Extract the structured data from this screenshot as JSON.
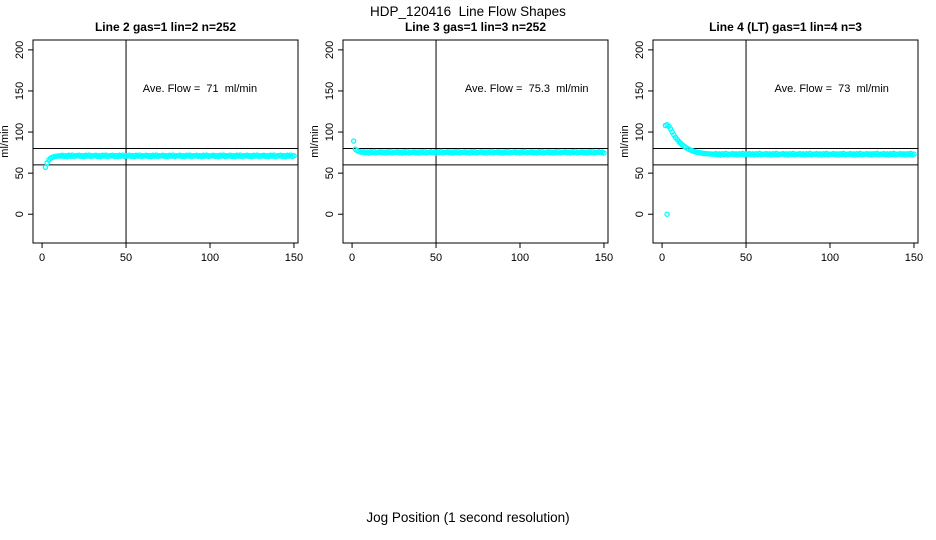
{
  "page": {
    "title": "HDP_120416  Line Flow Shapes",
    "xlabel": "Jog Position (1 second resolution)"
  },
  "colors": {
    "points": "#00ffff",
    "axis": "#000000",
    "text": "#000000",
    "background": "#ffffff"
  },
  "chart_data": [
    {
      "type": "scatter",
      "title": "Line 2 gas=1 lin=2 n=252",
      "annotation": "Ave. Flow =  71  ml/min",
      "ave_flow_ml_min": 71,
      "n": 252,
      "ylabel": "ml/min",
      "xlim": [
        -5.4,
        152.4
      ],
      "ylim": [
        -35,
        212
      ],
      "x_ticks": [
        0,
        50,
        100,
        150
      ],
      "y_ticks": [
        0,
        50,
        100,
        150,
        200
      ],
      "vline_x": 50,
      "hlines": [
        60,
        80
      ],
      "grid": false,
      "annotation_at": [
        94,
        149
      ],
      "series": {
        "x_start": 2,
        "x_step": 1,
        "values": [
          57,
          62.5,
          66,
          68,
          69.2,
          70,
          70.4,
          70.7,
          70.9,
          71,
          71.8,
          70.4,
          71.4,
          70.1,
          71.7,
          70.7,
          72,
          70.3,
          71.2,
          71,
          71.8,
          70.4,
          71.4,
          70.1,
          71.7,
          70.7,
          72,
          70.3,
          71.2,
          71,
          71.8,
          70.4,
          71.4,
          70.1,
          71.7,
          70.7,
          72,
          70.3,
          71.2,
          71,
          71.8,
          70.4,
          71.4,
          70.1,
          71.7,
          70.7,
          72,
          70.3,
          71.2,
          71,
          71.8,
          70.4,
          71.4,
          70.1,
          71.7,
          70.7,
          72,
          70.3,
          71.2,
          71,
          71.8,
          70.4,
          71.4,
          70.1,
          71.7,
          70.7,
          72,
          70.3,
          71.2,
          71,
          71.8,
          70.4,
          71.4,
          70.1,
          71.7,
          70.7,
          72,
          70.3,
          71.2,
          71,
          71.8,
          70.4,
          71.4,
          70.1,
          71.7,
          70.7,
          72,
          70.3,
          71.2,
          71,
          71.8,
          70.4,
          71.4,
          70.1,
          71.7,
          70.7,
          72,
          70.3,
          71.2,
          71,
          71.8,
          70.4,
          71.4,
          70.1,
          71.7,
          70.7,
          72,
          70.3,
          71.2,
          71,
          71.8,
          70.4,
          71.4,
          70.1,
          71.7,
          70.7,
          72,
          70.3,
          71.2,
          71,
          71.8,
          70.4,
          71.4,
          70.1,
          71.7,
          70.7,
          72,
          70.3,
          71.2,
          71,
          71.8,
          70.4,
          71.4,
          70.1,
          71.7,
          70.7,
          72,
          70.3,
          71.2,
          71,
          71.8,
          70.4,
          71.4,
          70.1,
          71.7,
          70.7,
          72,
          70.3,
          71.2
        ]
      },
      "outliers": []
    },
    {
      "type": "scatter",
      "title": "Line 3 gas=1 lin=3 n=252",
      "annotation": "Ave. Flow =  75.3  ml/min",
      "ave_flow_ml_min": 75.3,
      "n": 252,
      "ylabel": "ml/min",
      "xlim": [
        -5.4,
        152.4
      ],
      "ylim": [
        -35,
        212
      ],
      "x_ticks": [
        0,
        50,
        100,
        150
      ],
      "y_ticks": [
        0,
        50,
        100,
        150,
        200
      ],
      "vline_x": 50,
      "hlines": [
        60,
        80
      ],
      "grid": false,
      "annotation_at": [
        104,
        149
      ],
      "series": {
        "x_start": 2,
        "x_step": 1,
        "values": [
          79,
          77.5,
          76.5,
          75.8,
          75.3,
          76.1,
          74.7,
          75.7,
          74.4,
          76,
          75,
          76.3,
          74.6,
          75.5,
          75.3,
          76.1,
          74.7,
          75.7,
          74.4,
          76,
          75,
          76.3,
          74.6,
          75.5,
          75.3,
          76.1,
          74.7,
          75.7,
          74.4,
          76,
          75,
          76.3,
          74.6,
          75.5,
          75.3,
          76.1,
          74.7,
          75.7,
          74.4,
          76,
          75,
          76.3,
          74.6,
          75.5,
          75.3,
          76.1,
          74.7,
          75.7,
          74.4,
          76,
          75,
          76.3,
          74.6,
          75.5,
          75.3,
          76.1,
          74.7,
          75.7,
          74.4,
          76,
          75,
          76.3,
          74.6,
          75.5,
          75.3,
          76.1,
          74.7,
          75.7,
          74.4,
          76,
          75,
          76.3,
          74.6,
          75.5,
          75.3,
          76.1,
          74.7,
          75.7,
          74.4,
          76,
          75,
          76.3,
          74.6,
          75.5,
          75.3,
          76.1,
          74.7,
          75.7,
          74.4,
          76,
          75,
          76.3,
          74.6,
          75.5,
          75.3,
          76.1,
          74.7,
          75.7,
          74.4,
          76,
          75,
          76.3,
          74.6,
          75.5,
          75.3,
          76.1,
          74.7,
          75.7,
          74.4,
          76,
          75,
          76.3,
          74.6,
          75.5,
          75.3,
          76.1,
          74.7,
          75.7,
          74.4,
          76,
          75,
          76.3,
          74.6,
          75.5,
          75.3,
          76.1,
          74.7,
          75.7,
          74.4,
          76,
          75,
          76.3,
          74.6,
          75.5,
          75.3,
          76.1,
          74.7,
          75.7,
          74.4,
          76,
          75,
          76.3,
          74.6,
          75.5,
          75.3,
          76.1,
          74.7,
          75.7,
          74.4
        ]
      },
      "outliers": [
        [
          1,
          89
        ]
      ]
    },
    {
      "type": "scatter",
      "title": "Line 4 (LT) gas=1 lin=4 n=3",
      "annotation": "Ave. Flow =  73  ml/min",
      "ave_flow_ml_min": 73,
      "n": 3,
      "ylabel": "ml/min",
      "xlim": [
        -5.4,
        152.4
      ],
      "ylim": [
        -35,
        212
      ],
      "x_ticks": [
        0,
        50,
        100,
        150
      ],
      "y_ticks": [
        0,
        50,
        100,
        150,
        200
      ],
      "vline_x": 50,
      "hlines": [
        60,
        80
      ],
      "grid": false,
      "annotation_at": [
        101,
        149
      ],
      "series": {
        "x_start": 2,
        "x_step": 1,
        "values": [
          108,
          109,
          107,
          104,
          100,
          96.5,
          93.5,
          91,
          88.5,
          86.5,
          84.5,
          83,
          81.5,
          80,
          79,
          78,
          77.2,
          76.5,
          75.9,
          75.4,
          75,
          74.6,
          74.3,
          74,
          73.8,
          73.6,
          73.4,
          73.3,
          73.2,
          73,
          73.8,
          72.4,
          73.4,
          72.1,
          73.7,
          72.7,
          74,
          72.3,
          73.2,
          73,
          73.8,
          72.4,
          73.4,
          72.1,
          73.7,
          72.7,
          74,
          72.3,
          73.2,
          73,
          73.8,
          72.4,
          73.4,
          72.1,
          73.7,
          72.7,
          74,
          72.3,
          73.2,
          73,
          73.8,
          72.4,
          73.4,
          72.1,
          73.7,
          72.7,
          74,
          72.3,
          73.2,
          73,
          73.8,
          72.4,
          73.4,
          72.1,
          73.7,
          72.7,
          74,
          72.3,
          73.2,
          73,
          73.8,
          72.4,
          73.4,
          72.1,
          73.7,
          72.7,
          74,
          72.3,
          73.2,
          73,
          73.8,
          72.4,
          73.4,
          72.1,
          73.7,
          72.7,
          74,
          72.3,
          73.2,
          73,
          73.8,
          72.4,
          73.4,
          72.1,
          73.7,
          72.7,
          74,
          72.3,
          73.2,
          73,
          73.8,
          72.4,
          73.4,
          72.1,
          73.7,
          72.7,
          74,
          72.3,
          73.2,
          73,
          73.8,
          72.4,
          73.4,
          72.1,
          73.7,
          72.7,
          74,
          72.3,
          73.2,
          73,
          73.8,
          72.4,
          73.4,
          72.1,
          73.7,
          72.7,
          74,
          72.3,
          73.2,
          73,
          73.8,
          72.4,
          73.4,
          72.1,
          73.7,
          72.7,
          74,
          72.3,
          73.2
        ]
      },
      "outliers": [
        [
          3,
          0
        ]
      ]
    }
  ]
}
